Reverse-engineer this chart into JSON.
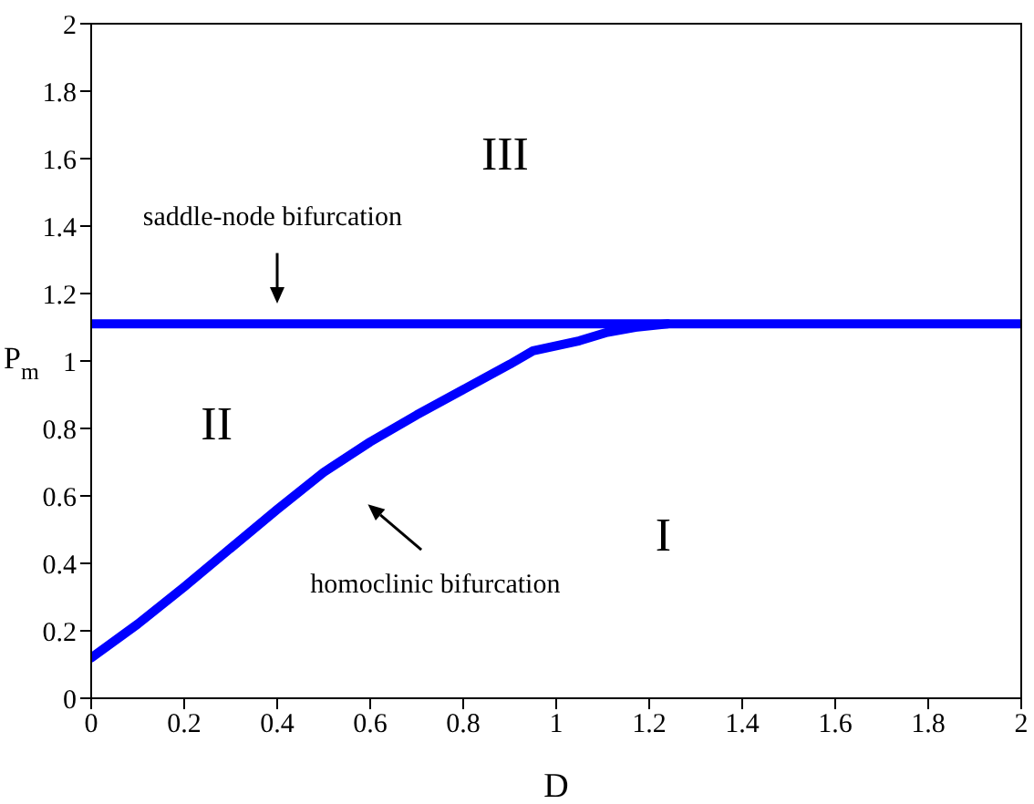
{
  "chart_data": {
    "type": "line",
    "xlabel": "D",
    "ylabel": "P$_{m}$",
    "xlim": [
      0,
      2
    ],
    "ylim": [
      0,
      2
    ],
    "xticks": [
      0,
      0.2,
      0.4,
      0.6,
      0.8,
      1,
      1.2,
      1.4,
      1.6,
      1.8,
      2
    ],
    "yticks": [
      0,
      0.2,
      0.4,
      0.6,
      0.8,
      1,
      1.2,
      1.4,
      1.6,
      1.8,
      2
    ],
    "marker": "none",
    "line_style": "solid",
    "series": [
      {
        "color": "#0000ff",
        "x": [
          0,
          2
        ],
        "values": [
          1.11,
          1.11
        ]
      },
      {
        "color": "#0000ff",
        "x": [
          0,
          0.1,
          0.2,
          0.3,
          0.4,
          0.5,
          0.6,
          0.7,
          0.8,
          0.9,
          0.95,
          1.05,
          1.11,
          1.17,
          1.24
        ],
        "values": [
          0.12,
          0.22,
          0.33,
          0.445,
          0.56,
          0.67,
          0.76,
          0.84,
          0.915,
          0.99,
          1.03,
          1.06,
          1.085,
          1.1,
          1.11
        ]
      }
    ],
    "annotations": [
      "III",
      "II",
      "I",
      "saddle-node bifurcation",
      "homoclinic bifurcation"
    ]
  }
}
